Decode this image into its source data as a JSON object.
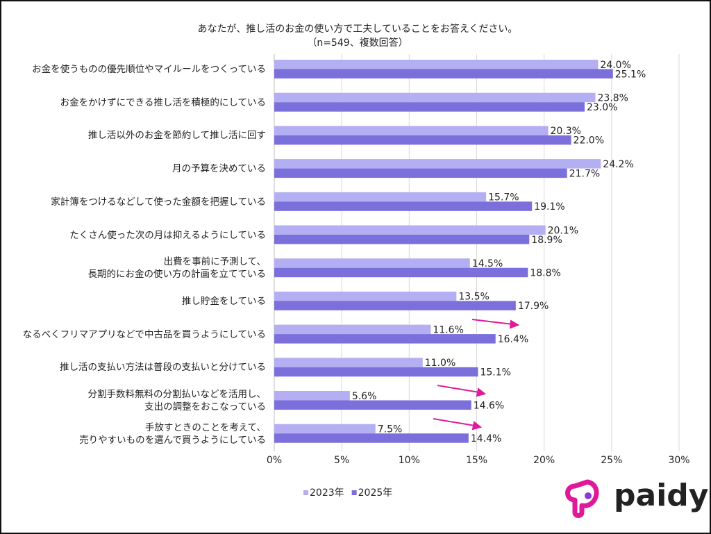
{
  "chart_data": {
    "type": "bar",
    "orientation": "horizontal",
    "title": "あなたが、推し活のお金の使い方で工夫していることをお答えください。",
    "subtitle": "（n=549、複数回答）",
    "categories": [
      "お金を使うものの優先順位やマイルールをつくっている",
      "お金をかけずにできる推し活を積極的にしている",
      "推し活以外のお金を節約して推し活に回す",
      "月の予算を決めている",
      "家計簿をつけるなどして使った金額を把握している",
      "たくさん使った次の月は抑えるようにしている",
      "出費を事前に予測して、\n長期的にお金の使い方の計画を立てている",
      "推し貯金をしている",
      "なるべくフリマアプリなどで中古品を買うようにしている",
      "推し活の支払い方法は普段の支払いと分けている",
      "分割手数料無料の分割払いなどを活用し、\n支出の調整をおこなっている",
      "手放すときのことを考えて、\n売りやすいものを選んで買うようにしている"
    ],
    "series": [
      {
        "name": "2023年",
        "color": "#b4aef2",
        "values": [
          24.0,
          23.8,
          20.3,
          24.2,
          15.7,
          20.1,
          14.5,
          13.5,
          11.6,
          11.0,
          5.6,
          7.5
        ],
        "value_labels": [
          "24.0%",
          "23.8%",
          "20.3%",
          "24.2%",
          "15.7%",
          "20.1%",
          "14.5%",
          "13.5%",
          "11.6%",
          "11.0%",
          "5.6%",
          "7.5%"
        ]
      },
      {
        "name": "2025年",
        "color": "#7b6fdc",
        "values": [
          25.1,
          23.0,
          22.0,
          21.7,
          19.1,
          18.9,
          18.8,
          17.9,
          16.4,
          15.1,
          14.6,
          14.4
        ],
        "value_labels": [
          "25.1%",
          "23.0%",
          "22.0%",
          "21.7%",
          "19.1%",
          "18.9%",
          "18.8%",
          "17.9%",
          "16.4%",
          "15.1%",
          "14.6%",
          "14.4%"
        ]
      }
    ],
    "xlim": [
      0,
      30
    ],
    "xticks": [
      {
        "value": 0,
        "label": "0%"
      },
      {
        "value": 5,
        "label": "5%"
      },
      {
        "value": 10,
        "label": "10%"
      },
      {
        "value": 15,
        "label": "15%"
      },
      {
        "value": 20,
        "label": "20%"
      },
      {
        "value": 25,
        "label": "25%"
      },
      {
        "value": 30,
        "label": "30%"
      }
    ],
    "grid": true,
    "legend": "bottom"
  },
  "logo": "paidy"
}
